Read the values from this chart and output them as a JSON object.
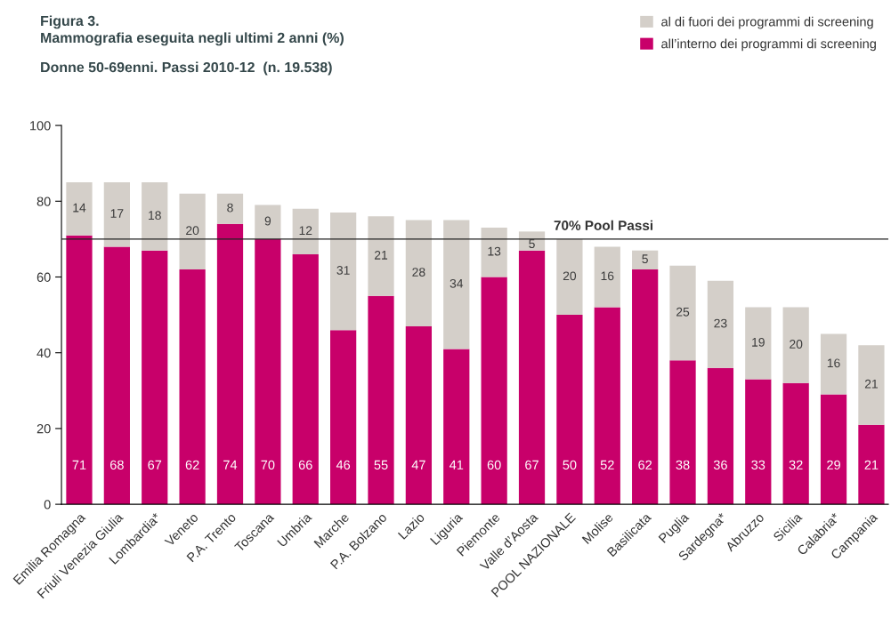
{
  "chart_data": {
    "type": "bar",
    "title": "Figura 3.\nMammografia eseguita negli ultimi 2 anni (%)",
    "subtitle": "Donne 50-69enni. Passi 2010-12  (n. 19.538)",
    "categories": [
      "Emilia Romagna",
      "Friuli Venezia Giulia",
      "Lombardia*",
      "Veneto",
      "P.A. Trento",
      "Toscana",
      "Umbria",
      "Marche",
      "P.A. Bolzano",
      "Lazio",
      "Liguria",
      "Piemonte",
      "Valle d’Aosta",
      "POOL NAZIONALE",
      "Molise",
      "Basilicata",
      "Puglia",
      "Sardegna*",
      "Abruzzo",
      "Sicilia",
      "Calabria*",
      "Campania"
    ],
    "stacked": true,
    "series": [
      {
        "name": "all’interno dei programmi di screening",
        "color": "#c8006a",
        "values": [
          71,
          68,
          67,
          62,
          74,
          70,
          66,
          46,
          55,
          47,
          41,
          60,
          67,
          50,
          52,
          62,
          38,
          36,
          33,
          32,
          29,
          21
        ]
      },
      {
        "name": "al di fuori dei programmi di screening",
        "color": "#d4cfc9",
        "values": [
          14,
          17,
          18,
          20,
          8,
          9,
          12,
          31,
          21,
          28,
          34,
          13,
          5,
          20,
          16,
          5,
          25,
          23,
          19,
          20,
          16,
          21
        ]
      }
    ],
    "ylim": [
      0,
      100
    ],
    "yticks": [
      0,
      20,
      40,
      60,
      80,
      100
    ],
    "ref_lines": [
      {
        "axis": "y",
        "value": 70,
        "label": "70% Pool Passi",
        "color": "#222222"
      }
    ],
    "data_labels": true,
    "legend": "top right",
    "grid": false
  }
}
